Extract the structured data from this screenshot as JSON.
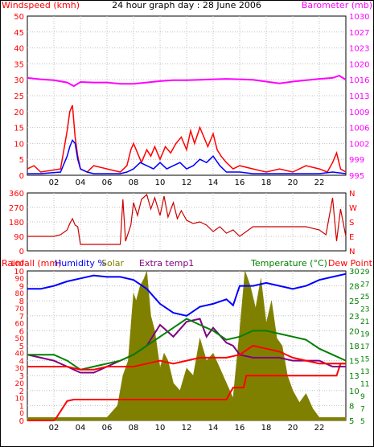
{
  "title": "24 hour graph day : 28 June 2006",
  "colors": {
    "wind_gust": "#ff0000",
    "wind_avg": "#0000ff",
    "barometer": "#ff00ff",
    "direction": "#cc0000",
    "rain": "#ff0000",
    "humidity": "#0000ff",
    "solar": "#808000",
    "extra_temp": "#800080",
    "temperature": "#008000",
    "dew_point": "#ff0000",
    "grid": "#c0c0c0",
    "axis_text_left": "#ff0000",
    "axis_text_right": "#008000"
  },
  "x_ticks": [
    "02",
    "04",
    "06",
    "08",
    "10",
    "12",
    "14",
    "16",
    "18",
    "20",
    "22"
  ],
  "chart_data": [
    {
      "type": "line",
      "panel": "wind-barometer",
      "left_label": "Windspeed (kmh)",
      "right_label": "Barometer (mb)",
      "left_ticks": [
        "0",
        "5",
        "10",
        "15",
        "20",
        "25",
        "30",
        "35",
        "40",
        "45",
        "50"
      ],
      "right_ticks": [
        "995",
        "999",
        "1002",
        "1006",
        "1009",
        "1013",
        "1016",
        "1020",
        "1023",
        "1027",
        "1030"
      ],
      "ylim_left": [
        0,
        50
      ],
      "ylim_right": [
        995,
        1030
      ],
      "xlim": [
        0,
        24
      ],
      "series": [
        {
          "role": "wind_gust",
          "x": [
            0,
            0.5,
            1,
            2.5,
            3,
            3.2,
            3.4,
            3.6,
            3.8,
            4,
            4.5,
            5,
            6,
            7,
            7.5,
            7.8,
            8,
            8.3,
            8.6,
            9,
            9.3,
            9.6,
            10,
            10.4,
            10.8,
            11.2,
            11.6,
            12,
            12.3,
            12.6,
            13,
            13.3,
            13.6,
            14,
            14.3,
            14.6,
            15,
            15.5,
            16,
            17,
            18,
            19,
            20,
            21,
            22,
            22.6,
            23,
            23.3,
            23.6,
            24
          ],
          "y": [
            2,
            3,
            1,
            2,
            14,
            20,
            22,
            12,
            6,
            2,
            1,
            3,
            2,
            1,
            3,
            8,
            10,
            7,
            4,
            8,
            6,
            9,
            5,
            9,
            7,
            10,
            12,
            8,
            14,
            10,
            15,
            12,
            9,
            13,
            8,
            6,
            4,
            2,
            3,
            2,
            1,
            2,
            1,
            3,
            2,
            1,
            4,
            7,
            2,
            1
          ]
        },
        {
          "role": "wind_avg",
          "x": [
            0,
            1,
            2.5,
            3,
            3.2,
            3.4,
            3.6,
            3.8,
            4,
            4.5,
            5,
            6,
            7,
            7.5,
            8,
            8.5,
            9,
            9.5,
            10,
            10.5,
            11,
            11.5,
            12,
            12.5,
            13,
            13.5,
            14,
            14.5,
            15,
            16,
            17,
            18,
            19,
            20,
            21,
            22,
            23,
            24
          ],
          "y": [
            0.5,
            0.5,
            1,
            6,
            9,
            11,
            10,
            5,
            2,
            1,
            0.5,
            0.5,
            0.5,
            1,
            2,
            4,
            3,
            2,
            4,
            2,
            3,
            4,
            2,
            3,
            5,
            4,
            6,
            3,
            1,
            1,
            0.5,
            0.5,
            0.5,
            0.5,
            0.5,
            0.5,
            1,
            0.5
          ]
        },
        {
          "role": "barometer",
          "x": [
            0,
            1,
            2,
            3,
            3.5,
            4,
            5,
            6,
            7,
            8,
            9,
            10,
            11,
            12,
            13,
            14,
            15,
            16,
            17,
            18,
            19,
            20,
            21,
            22,
            23,
            23.5,
            24
          ],
          "y": [
            1016.4,
            1016.1,
            1015.9,
            1015.4,
            1014.6,
            1015.5,
            1015.4,
            1015.4,
            1015.1,
            1015.1,
            1015.4,
            1015.7,
            1015.9,
            1015.9,
            1016,
            1016.1,
            1016.2,
            1016.1,
            1016,
            1015.6,
            1015.2,
            1015.6,
            1015.9,
            1016.2,
            1016.4,
            1016.9,
            1016
          ]
        }
      ]
    },
    {
      "type": "line",
      "panel": "wind-direction",
      "left_ticks": [
        "0",
        "90",
        "180",
        "270",
        "360"
      ],
      "right_ticks": [
        "N",
        "E",
        "S",
        "W",
        "N"
      ],
      "ylim": [
        0,
        360
      ],
      "xlim": [
        0,
        24
      ],
      "series": [
        {
          "role": "direction",
          "x": [
            0,
            1,
            2,
            2.5,
            3,
            3.2,
            3.4,
            3.6,
            3.8,
            4,
            5,
            6,
            6.5,
            7,
            7.2,
            7.4,
            7.8,
            8,
            8.3,
            8.6,
            9,
            9.3,
            9.6,
            10,
            10.3,
            10.6,
            11,
            11.3,
            11.6,
            12,
            12.5,
            13,
            13.5,
            14,
            14.5,
            15,
            15.5,
            16,
            17,
            18,
            19,
            20,
            21,
            22,
            22.5,
            23,
            23.3,
            23.6,
            24
          ],
          "y": [
            90,
            90,
            90,
            100,
            130,
            170,
            200,
            160,
            150,
            40,
            40,
            40,
            40,
            40,
            320,
            60,
            160,
            300,
            220,
            320,
            350,
            260,
            330,
            220,
            340,
            210,
            300,
            200,
            250,
            190,
            170,
            180,
            160,
            120,
            150,
            110,
            130,
            90,
            150,
            150,
            150,
            150,
            150,
            130,
            100,
            330,
            60,
            260,
            90
          ]
        }
      ]
    },
    {
      "type": "line",
      "panel": "rain-humidity-temperature",
      "legend": [
        "Rainfall (mm)",
        "Humidity %",
        "Solar",
        "Extra temp1",
        "Temperature (°C)",
        "Dew Point"
      ],
      "left_ticks": [
        "0",
        "1",
        "2",
        "3",
        "4",
        "5",
        "6",
        "7",
        "8",
        "9",
        "10"
      ],
      "left_ticks_2": [
        "0",
        "10",
        "20",
        "30",
        "40",
        "50",
        "60",
        "70",
        "80",
        "90",
        "100"
      ],
      "right_ticks": [
        "5",
        "8",
        "10",
        "13",
        "15",
        "18",
        "20",
        "23",
        "25",
        "28",
        "30"
      ],
      "right_ticks_2": [
        "5",
        "7",
        "9",
        "11",
        "13",
        "15",
        "17",
        "19",
        "21",
        "23",
        "25",
        "27",
        "29"
      ],
      "right_ticks_3": [
        "5",
        "7",
        "9",
        "11",
        "13",
        "15",
        "17",
        "19",
        "21",
        "23",
        "25",
        "27",
        "29"
      ],
      "xlim": [
        0,
        24
      ],
      "ylim_rain": [
        0,
        10
      ],
      "ylim_humidity": [
        0,
        100
      ],
      "ylim_solar": [
        0,
        100
      ],
      "ylim_temp": [
        5,
        30
      ],
      "series": [
        {
          "role": "rain",
          "x": [
            0,
            1,
            2,
            2.2,
            3,
            3.5,
            15,
            15.5,
            16.3,
            16.5,
            22,
            23.3,
            23.6,
            24
          ],
          "y": [
            0,
            0,
            0,
            0.2,
            1.3,
            1.4,
            1.4,
            2.2,
            2.2,
            3.0,
            3.0,
            3.0,
            3.8,
            3.8
          ]
        },
        {
          "role": "humidity",
          "x": [
            0,
            1,
            2,
            3,
            4,
            5,
            6,
            7,
            8,
            9,
            10,
            11,
            12,
            13,
            14,
            15,
            15.5,
            16,
            17,
            18,
            19,
            20,
            21,
            22,
            23,
            24
          ],
          "y": [
            88,
            88,
            90,
            93,
            95,
            97,
            96,
            96,
            94,
            88,
            78,
            72,
            70,
            76,
            78,
            81,
            77,
            90,
            90,
            92,
            90,
            88,
            90,
            94,
            96,
            98
          ]
        },
        {
          "role": "solar",
          "x": [
            0,
            2,
            3,
            4,
            5,
            6,
            6.8,
            7.2,
            7.6,
            8,
            8.2,
            8.5,
            8.8,
            9,
            9.3,
            9.6,
            10,
            10.3,
            10.6,
            11,
            11.5,
            12,
            12.5,
            13,
            13.5,
            14,
            14.5,
            15,
            15.5,
            16,
            16.4,
            16.8,
            17.2,
            17.6,
            18,
            18.4,
            18.8,
            19.2,
            19.6,
            20,
            20.5,
            21,
            21.5,
            22,
            23,
            24
          ],
          "y": [
            2,
            2,
            2,
            2,
            2,
            2,
            10,
            30,
            40,
            85,
            80,
            90,
            95,
            100,
            70,
            60,
            35,
            45,
            40,
            25,
            20,
            35,
            30,
            55,
            40,
            45,
            35,
            25,
            15,
            60,
            100,
            90,
            75,
            95,
            65,
            80,
            55,
            50,
            30,
            20,
            12,
            18,
            8,
            2,
            2,
            2
          ]
        },
        {
          "role": "extra_temp",
          "x": [
            0,
            1,
            2,
            3,
            4,
            5,
            6,
            7,
            8,
            9,
            10,
            11,
            12,
            13,
            13.5,
            14,
            15,
            15.5,
            16,
            17,
            18,
            19,
            20,
            21,
            22,
            23,
            24
          ],
          "y": [
            16,
            15.5,
            15,
            14,
            13,
            13,
            14,
            15,
            16,
            17.5,
            21,
            19,
            21.5,
            22,
            19,
            20.5,
            18,
            17.5,
            16,
            15.5,
            15.5,
            15.5,
            15,
            15,
            15,
            14,
            14
          ]
        },
        {
          "role": "temperature",
          "x": [
            0,
            1,
            2,
            3,
            4,
            5,
            6,
            7,
            8,
            9,
            10,
            11,
            12,
            13,
            14,
            15,
            16,
            17,
            18,
            19,
            20,
            21,
            22,
            23,
            24
          ],
          "y": [
            16,
            16,
            16,
            15,
            13.5,
            14,
            14.5,
            15,
            16,
            17.5,
            19,
            20.5,
            22,
            21,
            20,
            18.5,
            19,
            20,
            20,
            19.5,
            19,
            18.5,
            17,
            16,
            15
          ]
        },
        {
          "role": "dew_point",
          "x": [
            0,
            1,
            2,
            3,
            4,
            5,
            6,
            7,
            8,
            9,
            10,
            11,
            12,
            13,
            14,
            15,
            16,
            17,
            18,
            19,
            20,
            21,
            22,
            23,
            24
          ],
          "y": [
            14,
            14,
            14,
            14,
            13.5,
            13.5,
            14,
            14,
            14,
            14.5,
            15,
            14.5,
            15,
            15.5,
            15.5,
            15.5,
            16,
            17.5,
            17,
            16.5,
            15.5,
            15,
            14.5,
            14.5,
            14.5
          ]
        }
      ]
    }
  ]
}
